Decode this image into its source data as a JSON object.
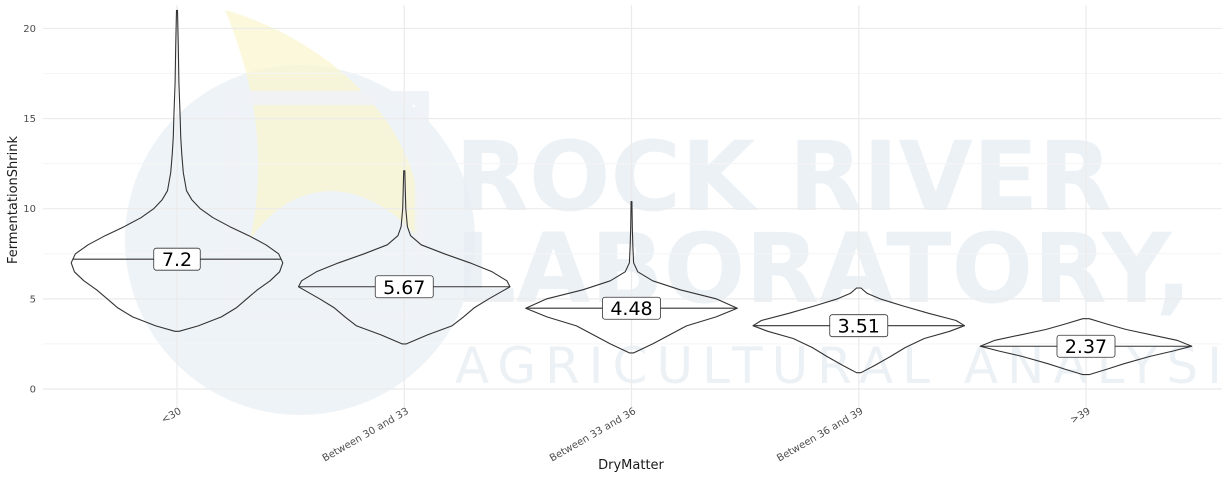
{
  "watermark": {
    "line1": "ROCK RIVER",
    "line2": "LABORATORY, INC.",
    "line3": "AGRICULTURAL ANALYSIS"
  },
  "colors": {
    "grid_major": "#ebebeb",
    "grid_minor": "#f5f5f5",
    "violin_stroke": "#333333",
    "watermark_blue": "#e3ebf2",
    "watermark_yellow": "#fbf5cc"
  },
  "chart_data": {
    "type": "violin",
    "xlabel": "DryMatter",
    "ylabel": "FermentationShrink",
    "ylim": [
      -1.0,
      21.3
    ],
    "yticks": [
      0,
      5,
      10,
      15,
      20
    ],
    "grid": true,
    "categories": [
      "<30",
      "Between 30 and 33",
      "Between 33 and 36",
      "Between 36 and 39",
      ">39"
    ],
    "medians": [
      7.2,
      5.67,
      4.48,
      3.51,
      2.37
    ],
    "median_labels": [
      "7.2",
      "5.67",
      "4.48",
      "3.51",
      "2.37"
    ],
    "ranges": [
      [
        3.2,
        21.0
      ],
      [
        2.5,
        12.1
      ],
      [
        2.0,
        10.4
      ],
      [
        0.9,
        5.6
      ],
      [
        0.8,
        3.9
      ]
    ],
    "density_profiles": [
      [
        [
          3.2,
          0.02
        ],
        [
          3.5,
          0.2
        ],
        [
          4.0,
          0.42
        ],
        [
          4.5,
          0.56
        ],
        [
          5.0,
          0.66
        ],
        [
          5.5,
          0.76
        ],
        [
          6.0,
          0.88
        ],
        [
          6.5,
          0.97
        ],
        [
          7.0,
          1.0
        ],
        [
          7.5,
          0.96
        ],
        [
          8.0,
          0.84
        ],
        [
          8.5,
          0.68
        ],
        [
          9.0,
          0.5
        ],
        [
          9.5,
          0.34
        ],
        [
          10.0,
          0.22
        ],
        [
          10.5,
          0.14
        ],
        [
          11.0,
          0.09
        ],
        [
          12.0,
          0.06
        ],
        [
          13.0,
          0.045
        ],
        [
          14.0,
          0.035
        ],
        [
          15.0,
          0.03
        ],
        [
          17.0,
          0.018
        ],
        [
          19.0,
          0.012
        ],
        [
          21.0,
          0.005
        ]
      ],
      [
        [
          2.5,
          0.02
        ],
        [
          3.0,
          0.22
        ],
        [
          3.5,
          0.45
        ],
        [
          4.0,
          0.56
        ],
        [
          4.5,
          0.66
        ],
        [
          5.0,
          0.8
        ],
        [
          5.5,
          0.95
        ],
        [
          5.67,
          1.0
        ],
        [
          6.0,
          0.97
        ],
        [
          6.5,
          0.83
        ],
        [
          7.0,
          0.62
        ],
        [
          7.5,
          0.38
        ],
        [
          8.0,
          0.16
        ],
        [
          8.5,
          0.06
        ],
        [
          9.0,
          0.03
        ],
        [
          10.0,
          0.015
        ],
        [
          11.0,
          0.01
        ],
        [
          12.1,
          0.005
        ]
      ],
      [
        [
          2.0,
          0.02
        ],
        [
          2.5,
          0.2
        ],
        [
          3.0,
          0.36
        ],
        [
          3.5,
          0.52
        ],
        [
          4.0,
          0.8
        ],
        [
          4.48,
          1.0
        ],
        [
          5.0,
          0.8
        ],
        [
          5.5,
          0.46
        ],
        [
          6.0,
          0.2
        ],
        [
          6.5,
          0.06
        ],
        [
          7.0,
          0.02
        ],
        [
          8.0,
          0.012
        ],
        [
          9.0,
          0.008
        ],
        [
          10.4,
          0.004
        ]
      ],
      [
        [
          0.9,
          0.02
        ],
        [
          1.3,
          0.15
        ],
        [
          1.8,
          0.3
        ],
        [
          2.3,
          0.44
        ],
        [
          2.8,
          0.62
        ],
        [
          3.2,
          0.86
        ],
        [
          3.51,
          1.0
        ],
        [
          3.8,
          0.92
        ],
        [
          4.2,
          0.66
        ],
        [
          4.6,
          0.42
        ],
        [
          5.0,
          0.2
        ],
        [
          5.3,
          0.08
        ],
        [
          5.6,
          0.02
        ]
      ],
      [
        [
          0.8,
          0.03
        ],
        [
          1.1,
          0.2
        ],
        [
          1.4,
          0.36
        ],
        [
          1.8,
          0.6
        ],
        [
          2.1,
          0.82
        ],
        [
          2.37,
          1.0
        ],
        [
          2.7,
          0.86
        ],
        [
          3.0,
          0.62
        ],
        [
          3.3,
          0.38
        ],
        [
          3.6,
          0.2
        ],
        [
          3.9,
          0.03
        ]
      ]
    ]
  }
}
